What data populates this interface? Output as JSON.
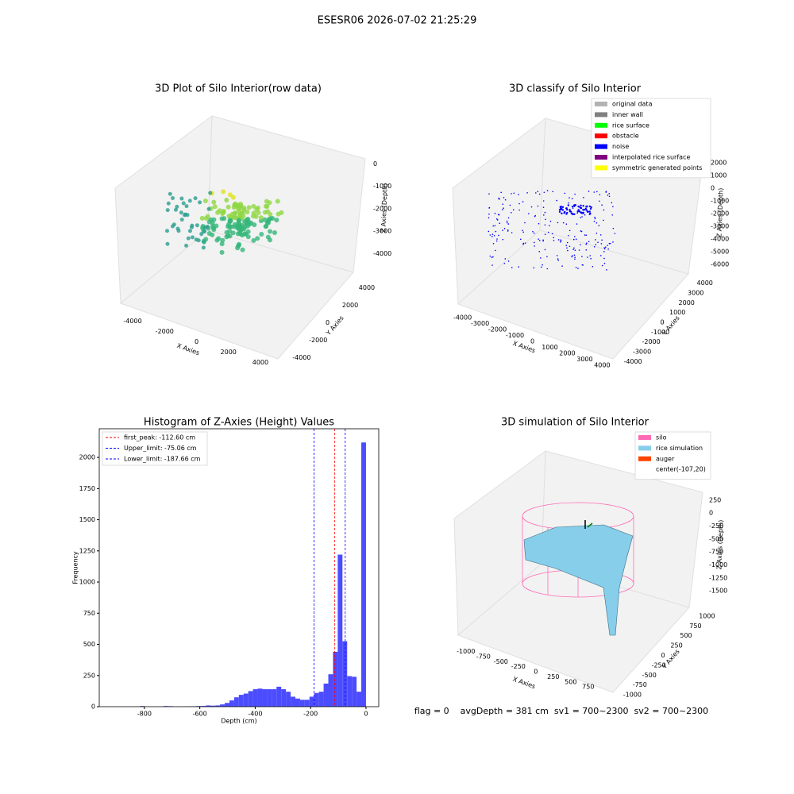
{
  "suptitle": "ESESR06 2026-07-02 21:25:29",
  "footer": "flag = 0    avgDepth = 381 cm  sv1 = 700~2300  sv2 = 700~2300",
  "chart_data": [
    {
      "type": "scatter3d",
      "title": "3D Plot of Silo Interior(row data)",
      "x_label": "X Axies",
      "y_label": "Y Axies",
      "z_label": "Z Axies (Depth)",
      "xlim": [
        -4500,
        4500
      ],
      "xticks": [
        -4000,
        -2000,
        0,
        2000,
        4000
      ],
      "ylim": [
        -4500,
        4500
      ],
      "yticks": [
        -4000,
        -2000,
        0,
        2000,
        4000
      ],
      "zlim": [
        -4800,
        300
      ],
      "zticks": [
        0,
        -1000,
        -2000,
        -3000,
        -4000
      ]
    },
    {
      "type": "scatter3d",
      "title": "3D classify of Silo Interior",
      "x_label": "X Axies",
      "y_label": "Y Axies",
      "z_label": "Z Axies (Depth)",
      "xlim": [
        -4300,
        4300
      ],
      "xticks": [
        -4000,
        -3000,
        -2000,
        -1000,
        0,
        1000,
        2000,
        3000,
        4000
      ],
      "ylim": [
        -4300,
        4300
      ],
      "yticks": [
        -4000,
        -3000,
        -2000,
        -1000,
        0,
        1000,
        2000,
        3000,
        4000
      ],
      "zlim": [
        -6500,
        2500
      ],
      "zticks": [
        2000,
        1000,
        0,
        -1000,
        -2000,
        -3000,
        -4000,
        -5000,
        -6000
      ],
      "series": [
        {
          "name": "original data",
          "color": "#b3b3b3"
        },
        {
          "name": "inner wall",
          "color": "#808080"
        },
        {
          "name": "rice surface",
          "color": "#00ff00"
        },
        {
          "name": "obstacle",
          "color": "#ff0000"
        },
        {
          "name": "noise",
          "color": "#0000ff"
        },
        {
          "name": "interpolated rice surface",
          "color": "#800080"
        },
        {
          "name": "symmetric generated points",
          "color": "#ffff00"
        }
      ]
    },
    {
      "type": "histogram",
      "title": "Histogram of Z-Axies (Height) Values",
      "x_label": "Depth (cm)",
      "y_label": "Frequency",
      "color": "#4c4cff",
      "bins": [
        -952,
        -935,
        -918,
        -901,
        -884,
        -867,
        -850,
        -833,
        -816,
        -799,
        -782,
        -765,
        -748,
        -731,
        -714,
        -697,
        -680,
        -663,
        -646,
        -629,
        -612,
        -595,
        -578,
        -561,
        -544,
        -527,
        -510,
        -493,
        -476,
        -459,
        -442,
        -425,
        -408,
        -391,
        -374,
        -357,
        -340,
        -323,
        -306,
        -289,
        -272,
        -255,
        -238,
        -221,
        -204,
        -187,
        -170,
        -153,
        -136,
        -119,
        -102,
        -85,
        -68,
        -51,
        -34,
        -17,
        0
      ],
      "values": [
        0,
        0,
        0,
        0,
        0,
        0,
        0,
        0,
        5,
        0,
        0,
        0,
        0,
        5,
        4,
        0,
        0,
        1,
        2,
        3,
        5,
        6,
        10,
        8,
        10,
        18,
        30,
        50,
        75,
        95,
        105,
        125,
        140,
        145,
        140,
        140,
        140,
        160,
        140,
        120,
        80,
        65,
        55,
        55,
        80,
        110,
        120,
        185,
        260,
        440,
        1220,
        525,
        245,
        240,
        120,
        2120
      ],
      "xlim": [
        -963,
        46
      ],
      "xticks": [
        -800,
        -600,
        -400,
        -200,
        0
      ],
      "ylim": [
        0,
        2230
      ],
      "yticks": [
        0,
        250,
        500,
        750,
        1000,
        1250,
        1500,
        1750,
        2000
      ],
      "lines": [
        {
          "name": "first_peak: -112.60 cm",
          "value": -112.6,
          "color": "#ff0000"
        },
        {
          "name": "Upper_limit: -75.06 cm",
          "value": -75.06,
          "color": "#0000ff"
        },
        {
          "name": "Lower_limit: -187.66 cm",
          "value": -187.66,
          "color": "#0000ff"
        }
      ]
    },
    {
      "type": "surface3d",
      "title": "3D simulation of Silo Interior",
      "x_label": "X Axies",
      "y_label": "Y Axies",
      "z_label": "Z Axies (Depth)",
      "xlim": [
        -1100,
        900
      ],
      "xticks": [
        -1000,
        -750,
        -500,
        -250,
        0,
        250,
        500,
        750
      ],
      "ylim": [
        -1100,
        1100
      ],
      "yticks": [
        -1000,
        -750,
        -500,
        -250,
        0,
        250,
        500,
        750,
        1000
      ],
      "zlim": [
        -1650,
        400
      ],
      "zticks": [
        250,
        0,
        -250,
        -500,
        -750,
        -1000,
        -1250,
        -1500
      ],
      "series": [
        {
          "name": "silo",
          "color": "#ff69b4"
        },
        {
          "name": "rice simulation",
          "color": "#87ceeb"
        },
        {
          "name": "auger",
          "color": "#ff4500"
        },
        {
          "name": "center(-107,20)"
        }
      ]
    }
  ]
}
